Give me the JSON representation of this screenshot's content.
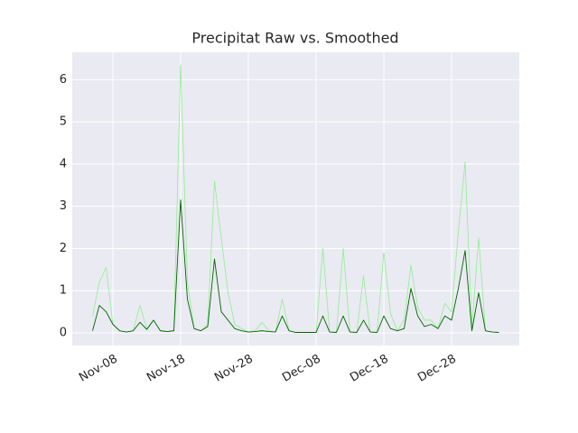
{
  "chart_data": {
    "type": "line",
    "title": "Precipitat Raw vs. Smoothed",
    "x": [
      "Nov-05",
      "Nov-06",
      "Nov-07",
      "Nov-08",
      "Nov-09",
      "Nov-10",
      "Nov-11",
      "Nov-12",
      "Nov-13",
      "Nov-14",
      "Nov-15",
      "Nov-16",
      "Nov-17",
      "Nov-18",
      "Nov-19",
      "Nov-20",
      "Nov-21",
      "Nov-22",
      "Nov-23",
      "Nov-24",
      "Nov-25",
      "Nov-26",
      "Nov-27",
      "Nov-28",
      "Nov-29",
      "Nov-30",
      "Dec-01",
      "Dec-02",
      "Dec-03",
      "Dec-04",
      "Dec-05",
      "Dec-06",
      "Dec-07",
      "Dec-08",
      "Dec-09",
      "Dec-10",
      "Dec-11",
      "Dec-12",
      "Dec-13",
      "Dec-14",
      "Dec-15",
      "Dec-16",
      "Dec-17",
      "Dec-18",
      "Dec-19",
      "Dec-20",
      "Dec-21",
      "Dec-22",
      "Dec-23",
      "Dec-24",
      "Dec-25",
      "Dec-26",
      "Dec-27",
      "Dec-28",
      "Dec-29",
      "Dec-30",
      "Dec-31",
      "Jan-01",
      "Jan-02",
      "Jan-03",
      "Jan-04"
    ],
    "series": [
      {
        "color": "#90ee90",
        "values": [
          0.4,
          1.2,
          1.55,
          0.2,
          0.05,
          0.02,
          0.05,
          0.65,
          0.1,
          0.3,
          0.05,
          0.03,
          0.05,
          6.35,
          1.2,
          0.1,
          0.05,
          0.2,
          3.6,
          2.25,
          0.95,
          0.2,
          0.1,
          0.02,
          0.05,
          0.25,
          0.05,
          0.02,
          0.8,
          0.05,
          0.01,
          0.01,
          0.01,
          0.01,
          2.0,
          0.02,
          0.01,
          2.0,
          0.02,
          0.01,
          1.35,
          0.02,
          0.01,
          1.9,
          0.45,
          0.05,
          0.3,
          1.6,
          0.6,
          0.3,
          0.3,
          0.1,
          0.7,
          0.5,
          2.4,
          4.05,
          0.1,
          2.25,
          0.05,
          0.02,
          0.01
        ]
      },
      {
        "color": "#006400",
        "values": [
          0.05,
          0.65,
          0.5,
          0.2,
          0.05,
          0.02,
          0.05,
          0.25,
          0.08,
          0.3,
          0.05,
          0.03,
          0.05,
          3.15,
          0.8,
          0.1,
          0.05,
          0.15,
          1.75,
          0.5,
          0.3,
          0.1,
          0.05,
          0.02,
          0.03,
          0.05,
          0.03,
          0.02,
          0.4,
          0.05,
          0.01,
          0.01,
          0.01,
          0.01,
          0.4,
          0.02,
          0.01,
          0.4,
          0.02,
          0.01,
          0.3,
          0.02,
          0.01,
          0.4,
          0.1,
          0.05,
          0.1,
          1.05,
          0.4,
          0.15,
          0.2,
          0.1,
          0.4,
          0.3,
          1.05,
          1.95,
          0.05,
          0.95,
          0.05,
          0.02,
          0.01
        ]
      }
    ],
    "xlim": [
      "Nov-02",
      "Jan-07"
    ],
    "xticks": [
      "Nov-08",
      "Nov-18",
      "Nov-28",
      "Dec-08",
      "Dec-18",
      "Dec-28"
    ],
    "ylim": [
      -0.3,
      6.65
    ],
    "yticks": [
      0,
      1,
      2,
      3,
      4,
      5,
      6
    ],
    "grid": true
  }
}
